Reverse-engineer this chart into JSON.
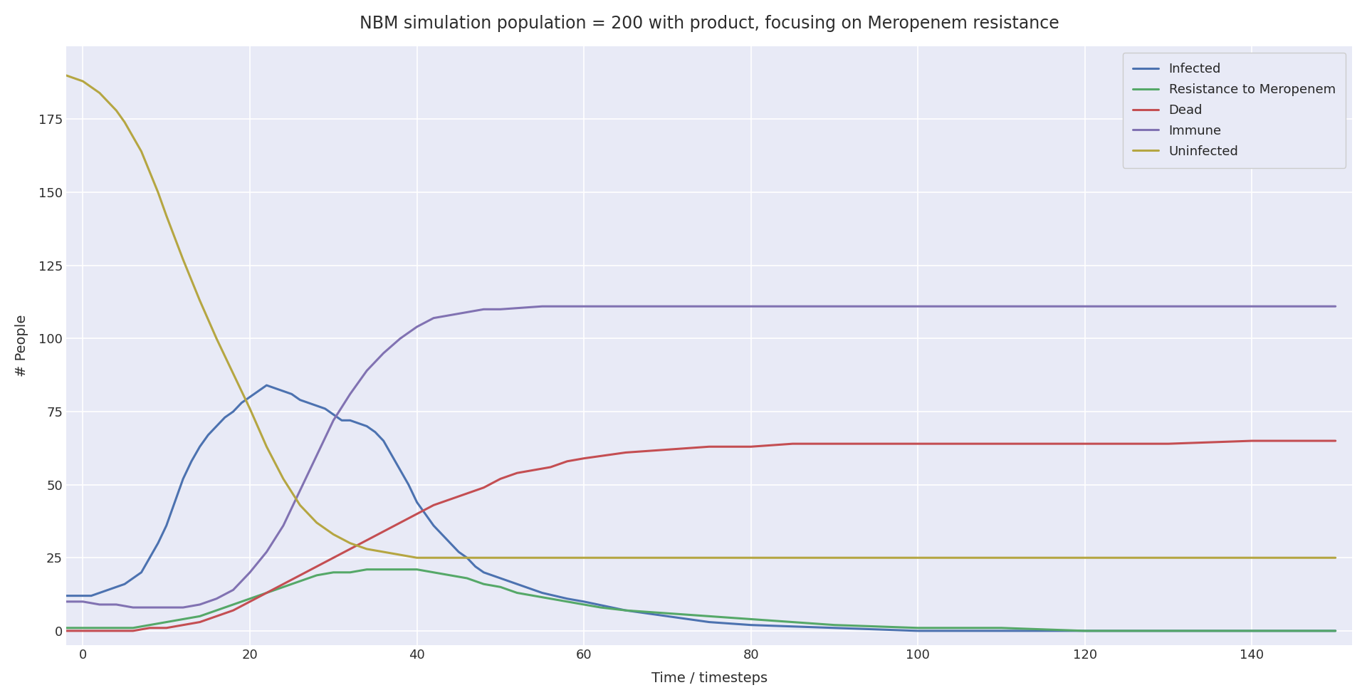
{
  "title": "NBM simulation population = 200 with product, focusing on Meropenem resistance",
  "xlabel": "Time / timesteps",
  "ylabel": "# People",
  "xlim": [
    -2,
    152
  ],
  "ylim": [
    -5,
    200
  ],
  "background_color": "#e8eaf6",
  "grid_color": "#ffffff",
  "series": {
    "Infected": {
      "color": "#4c72b0",
      "x": [
        -2,
        0,
        1,
        2,
        3,
        4,
        5,
        6,
        7,
        8,
        9,
        10,
        11,
        12,
        13,
        14,
        15,
        16,
        17,
        18,
        19,
        20,
        21,
        22,
        23,
        24,
        25,
        26,
        27,
        28,
        29,
        30,
        31,
        32,
        33,
        34,
        35,
        36,
        37,
        38,
        39,
        40,
        41,
        42,
        43,
        44,
        45,
        46,
        47,
        48,
        50,
        52,
        55,
        58,
        60,
        65,
        70,
        75,
        80,
        90,
        100,
        110,
        120,
        130,
        140,
        150
      ],
      "y": [
        12,
        12,
        12,
        13,
        14,
        15,
        16,
        18,
        20,
        25,
        30,
        36,
        44,
        52,
        58,
        63,
        67,
        70,
        73,
        75,
        78,
        80,
        82,
        84,
        83,
        82,
        81,
        79,
        78,
        77,
        76,
        74,
        72,
        72,
        71,
        70,
        68,
        65,
        60,
        55,
        50,
        44,
        40,
        36,
        33,
        30,
        27,
        25,
        22,
        20,
        18,
        16,
        13,
        11,
        10,
        7,
        5,
        3,
        2,
        1,
        0,
        0,
        0,
        0,
        0,
        0
      ]
    },
    "Resistance to Meropenem": {
      "color": "#55a868",
      "x": [
        -2,
        0,
        2,
        4,
        6,
        8,
        10,
        12,
        14,
        16,
        18,
        20,
        22,
        24,
        26,
        28,
        30,
        32,
        34,
        36,
        38,
        40,
        42,
        44,
        46,
        48,
        50,
        52,
        54,
        56,
        58,
        60,
        62,
        65,
        70,
        75,
        80,
        85,
        90,
        100,
        110,
        120,
        130,
        140,
        150
      ],
      "y": [
        1,
        1,
        1,
        1,
        1,
        2,
        3,
        4,
        5,
        7,
        9,
        11,
        13,
        15,
        17,
        19,
        20,
        20,
        21,
        21,
        21,
        21,
        20,
        19,
        18,
        16,
        15,
        13,
        12,
        11,
        10,
        9,
        8,
        7,
        6,
        5,
        4,
        3,
        2,
        1,
        1,
        0,
        0,
        0,
        0
      ]
    },
    "Dead": {
      "color": "#c44e52",
      "x": [
        -2,
        0,
        2,
        4,
        6,
        8,
        10,
        12,
        14,
        16,
        18,
        20,
        22,
        24,
        26,
        28,
        30,
        32,
        34,
        36,
        38,
        40,
        42,
        44,
        46,
        48,
        50,
        52,
        54,
        56,
        58,
        60,
        65,
        70,
        75,
        80,
        85,
        90,
        100,
        110,
        120,
        130,
        140,
        150
      ],
      "y": [
        0,
        0,
        0,
        0,
        0,
        1,
        1,
        2,
        3,
        5,
        7,
        10,
        13,
        16,
        19,
        22,
        25,
        28,
        31,
        34,
        37,
        40,
        43,
        45,
        47,
        49,
        52,
        54,
        55,
        56,
        58,
        59,
        61,
        62,
        63,
        63,
        64,
        64,
        64,
        64,
        64,
        64,
        65,
        65
      ]
    },
    "Immune": {
      "color": "#8172b2",
      "x": [
        -2,
        0,
        2,
        4,
        6,
        8,
        10,
        12,
        14,
        16,
        18,
        20,
        22,
        24,
        26,
        28,
        30,
        32,
        34,
        36,
        38,
        40,
        42,
        44,
        46,
        48,
        50,
        55,
        60,
        65,
        70,
        80,
        90,
        100,
        110,
        120,
        130,
        140,
        150
      ],
      "y": [
        10,
        10,
        9,
        9,
        8,
        8,
        8,
        8,
        9,
        11,
        14,
        20,
        27,
        36,
        48,
        60,
        72,
        81,
        89,
        95,
        100,
        104,
        107,
        108,
        109,
        110,
        110,
        111,
        111,
        111,
        111,
        111,
        111,
        111,
        111,
        111,
        111,
        111,
        111
      ]
    },
    "Uninfected": {
      "color": "#b5a642",
      "x": [
        -2,
        0,
        1,
        2,
        3,
        4,
        5,
        6,
        7,
        8,
        9,
        10,
        12,
        14,
        16,
        18,
        20,
        22,
        24,
        26,
        28,
        30,
        32,
        34,
        36,
        38,
        40,
        42,
        44,
        46,
        48,
        50,
        55,
        60,
        65,
        70,
        80,
        90,
        100,
        110,
        120,
        130,
        140,
        150
      ],
      "y": [
        190,
        188,
        186,
        184,
        181,
        178,
        174,
        169,
        164,
        157,
        150,
        142,
        127,
        113,
        100,
        88,
        76,
        63,
        52,
        43,
        37,
        33,
        30,
        28,
        27,
        26,
        25,
        25,
        25,
        25,
        25,
        25,
        25,
        25,
        25,
        25,
        25,
        25,
        25,
        25,
        25,
        25,
        25,
        25
      ]
    }
  },
  "legend_order": [
    "Infected",
    "Resistance to Meropenem",
    "Dead",
    "Immune",
    "Uninfected"
  ],
  "title_fontsize": 17,
  "label_fontsize": 14,
  "tick_fontsize": 13,
  "legend_fontsize": 13,
  "line_width": 2.2,
  "xticks": [
    0,
    20,
    40,
    60,
    80,
    100,
    120,
    140
  ],
  "yticks": [
    0,
    25,
    50,
    75,
    100,
    125,
    150,
    175
  ]
}
